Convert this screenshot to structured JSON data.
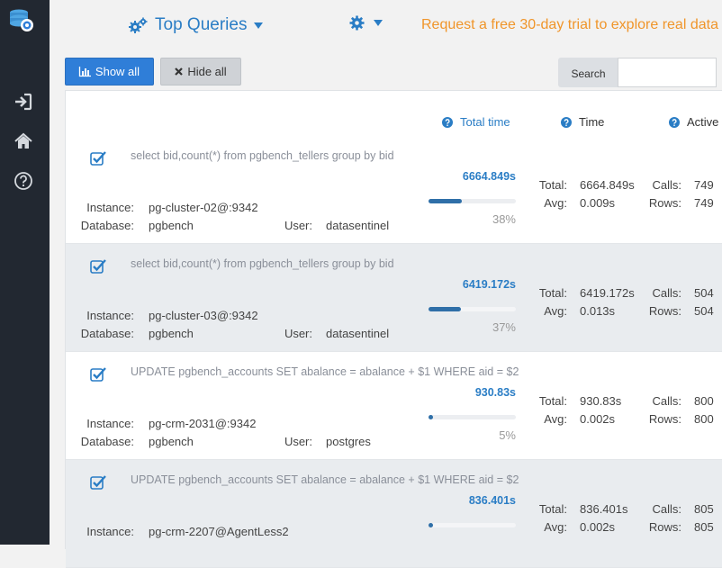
{
  "header": {
    "title": "Top Queries",
    "promo": "Request a free 30-day trial to explore real data"
  },
  "toolbar": {
    "show_all": "Show all",
    "hide_all": "Hide all",
    "search_label": "Search",
    "search_value": "",
    "search_placeholder": ""
  },
  "columns": {
    "total_time": "Total time",
    "time": "Time",
    "active": "Active"
  },
  "labels": {
    "instance": "Instance:",
    "database": "Database:",
    "user": "User:",
    "total": "Total:",
    "avg": "Avg:",
    "calls": "Calls:",
    "rows": "Rows:"
  },
  "colors": {
    "accent": "#2a7dc5",
    "promo": "#f0952a",
    "sidebar": "#222831"
  },
  "rows": [
    {
      "query": "select bid,count(*) from pgbench_tellers group by bid",
      "instance": "pg-cluster-02@:9342",
      "database": "pgbench",
      "user": "datasentinel",
      "total_time": "6664.849s",
      "percent": 38,
      "percent_label": "38%",
      "total": "6664.849s",
      "avg": "0.009s",
      "calls": "749",
      "rows": "749"
    },
    {
      "query": "select bid,count(*) from pgbench_tellers group by bid",
      "instance": "pg-cluster-03@:9342",
      "database": "pgbench",
      "user": "datasentinel",
      "total_time": "6419.172s",
      "percent": 37,
      "percent_label": "37%",
      "total": "6419.172s",
      "avg": "0.013s",
      "calls": "504",
      "rows": "504"
    },
    {
      "query": "UPDATE pgbench_accounts SET abalance = abalance + $1 WHERE aid = $2",
      "instance": "pg-crm-2031@:9342",
      "database": "pgbench",
      "user": "postgres",
      "total_time": "930.83s",
      "percent": 5,
      "percent_label": "5%",
      "total": "930.83s",
      "avg": "0.002s",
      "calls": "800",
      "rows": "800"
    },
    {
      "query": "UPDATE pgbench_accounts SET abalance = abalance + $1 WHERE aid = $2",
      "instance": "pg-crm-2207@AgentLess2",
      "database": "",
      "user": "",
      "total_time": "836.401s",
      "percent": 5,
      "percent_label": "",
      "total": "836.401s",
      "avg": "0.002s",
      "calls": "805",
      "rows": "805"
    }
  ]
}
